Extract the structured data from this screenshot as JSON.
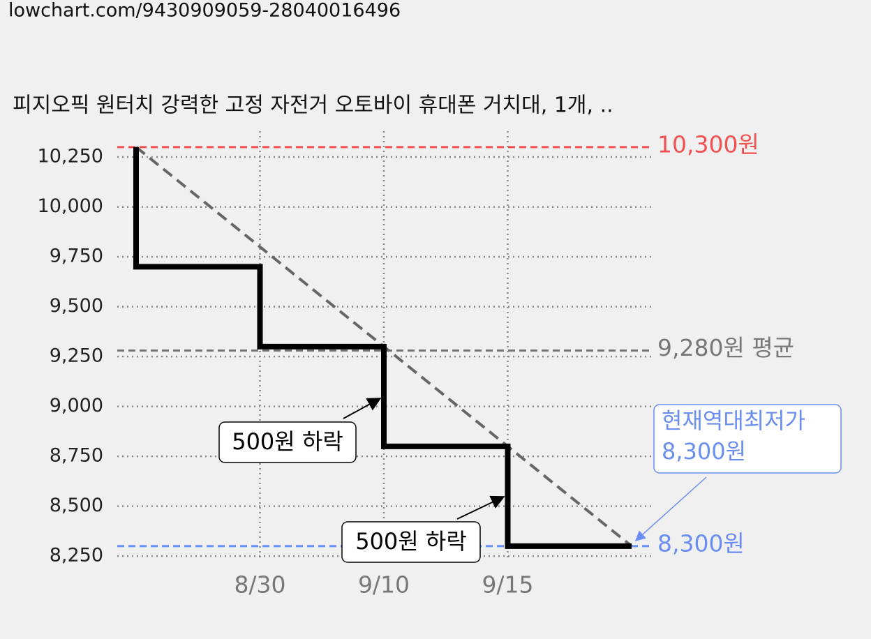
{
  "header": "lowchart.com/9430909059-28040016496",
  "chart_data": {
    "type": "line",
    "drawstyle": "steps-pre",
    "title": "피지오픽 원터치 강력한 고정 자전거 오토바이 휴대폰 거치대, 1개, ..",
    "categories": [
      null,
      "8/30",
      "9/10",
      "9/15",
      null
    ],
    "series": [
      {
        "color": "#000000",
        "values": [
          10300,
          9700,
          9300,
          8800,
          8300
        ]
      }
    ],
    "trend_color": "#666666",
    "ylim": [
      8240,
      10370
    ],
    "yticks": [
      {
        "value": 8250,
        "label": "8,250"
      },
      {
        "value": 8500,
        "label": "8,500"
      },
      {
        "value": 8750,
        "label": "8,750"
      },
      {
        "value": 9000,
        "label": "9,000"
      },
      {
        "value": 9250,
        "label": "9,250"
      },
      {
        "value": 9500,
        "label": "9,500"
      },
      {
        "value": 9750,
        "label": "9,750"
      },
      {
        "value": 10000,
        "label": "10,000"
      },
      {
        "value": 10250,
        "label": "10,250"
      }
    ],
    "grid": true,
    "hlines": [
      {
        "value": 10300,
        "label": "10,300원",
        "color": "#f05050"
      },
      {
        "value": 9280,
        "label": "9,280원 평균",
        "color": "#777777"
      },
      {
        "value": 8300,
        "label": "8,300원",
        "color": "#6a8ef0"
      }
    ],
    "annotations": [
      {
        "text": "500원 하락"
      },
      {
        "text": "500원 하락"
      },
      {
        "lines": [
          "현재역대최저가",
          "8,300원"
        ],
        "color": "#6a8ef0"
      }
    ]
  }
}
